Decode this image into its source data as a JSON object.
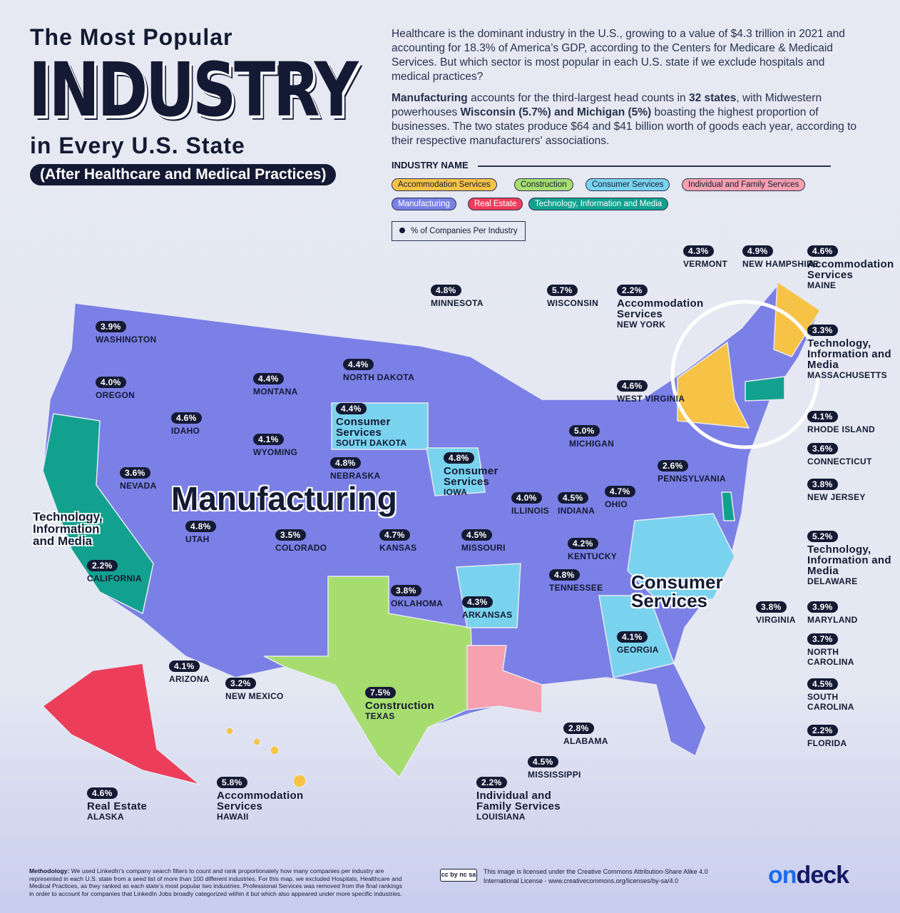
{
  "header": {
    "line1": "The Most Popular",
    "line2": "INDUSTRY",
    "line3": "in Every U.S. State",
    "subtitle": "(After Healthcare and Medical Practices)"
  },
  "intro": {
    "p1": "Healthcare is the dominant industry in the U.S., growing to a value of $4.3 trillion in 2021 and accounting for 18.3% of America’s GDP, according to the Centers for Medicare & Medicaid Services. But which sector is most popular in each U.S. state if we exclude hospitals and medical practices?",
    "p2_parts": [
      "Manufacturing",
      " accounts for the third-largest head counts in ",
      "32 states",
      ", with Midwestern powerhouses ",
      "Wisconsin (5.7%) and Michigan (5%)",
      " boasting the highest proportion of businesses. The two states produce $64 and $41 billion worth of goods each year, according to their respective manufacturers' associations."
    ]
  },
  "legend": {
    "title": "INDUSTRY NAME",
    "items": [
      {
        "label": "Accommodation Services",
        "color": "#f6c347",
        "text": "#141a33"
      },
      {
        "label": "Construction",
        "color": "#a6dd6e",
        "text": "#141a33"
      },
      {
        "label": "Consumer Services",
        "color": "#7ad3ee",
        "text": "#141a33"
      },
      {
        "label": "Individual and Family Services",
        "color": "#f6a0b0",
        "text": "#141a33"
      },
      {
        "label": "Manufacturing",
        "color": "#7b80e6",
        "text": "#ffffff"
      },
      {
        "label": "Real Estate",
        "color": "#ec3e5b",
        "text": "#ffffff"
      },
      {
        "label": "Technology, Information and Media",
        "color": "#12a18e",
        "text": "#ffffff"
      }
    ],
    "pct_key": "% of Companies Per Industry"
  },
  "region_labels": {
    "manufacturing": "Manufacturing",
    "consumer": "Consumer Services",
    "tech": "Technology, Information and Media"
  },
  "states": [
    {
      "pct": "3.9%",
      "name": "WASHINGTON"
    },
    {
      "pct": "4.0%",
      "name": "OREGON"
    },
    {
      "pct": "4.6%",
      "name": "IDAHO"
    },
    {
      "pct": "4.4%",
      "name": "MONTANA"
    },
    {
      "pct": "4.4%",
      "name": "NORTH DAKOTA"
    },
    {
      "pct": "4.8%",
      "name": "MINNESOTA"
    },
    {
      "pct": "5.7%",
      "name": "WISCONSIN"
    },
    {
      "pct": "2.2%",
      "name": "NEW YORK",
      "industry": "Accommodation Services"
    },
    {
      "pct": "4.3%",
      "name": "VERMONT"
    },
    {
      "pct": "4.9%",
      "name": "NEW HAMPSHIRE"
    },
    {
      "pct": "4.6%",
      "name": "MAINE",
      "industry": "Accommodation Services"
    },
    {
      "pct": "3.3%",
      "name": "MASSACHUSETTS",
      "industry": "Technology, Information and Media"
    },
    {
      "pct": "4.1%",
      "name": "RHODE ISLAND"
    },
    {
      "pct": "3.6%",
      "name": "CONNECTICUT"
    },
    {
      "pct": "3.8%",
      "name": "NEW JERSEY"
    },
    {
      "pct": "5.2%",
      "name": "DELAWARE",
      "industry": "Technology, Information and Media"
    },
    {
      "pct": "3.9%",
      "name": "MARYLAND"
    },
    {
      "pct": "3.8%",
      "name": "VIRGINIA"
    },
    {
      "pct": "3.7%",
      "name": "NORTH CAROLINA"
    },
    {
      "pct": "4.5%",
      "name": "SOUTH CAROLINA"
    },
    {
      "pct": "2.2%",
      "name": "FLORIDA"
    },
    {
      "pct": "4.4%",
      "name": "SOUTH DAKOTA",
      "industry": "Consumer Services"
    },
    {
      "pct": "4.1%",
      "name": "WYOMING"
    },
    {
      "pct": "3.6%",
      "name": "NEVADA"
    },
    {
      "pct": "4.8%",
      "name": "NEBRASKA"
    },
    {
      "pct": "4.8%",
      "name": "IOWA",
      "industry": "Consumer Services"
    },
    {
      "pct": "5.0%",
      "name": "MICHIGAN"
    },
    {
      "pct": "4.6%",
      "name": "WEST VIRGINIA"
    },
    {
      "pct": "2.6%",
      "name": "PENNSYLVANIA"
    },
    {
      "pct": "4.0%",
      "name": "ILLINOIS"
    },
    {
      "pct": "4.5%",
      "name": "INDIANA"
    },
    {
      "pct": "4.7%",
      "name": "OHIO"
    },
    {
      "pct": "4.8%",
      "name": "UTAH"
    },
    {
      "pct": "3.5%",
      "name": "COLORADO"
    },
    {
      "pct": "4.7%",
      "name": "KANSAS"
    },
    {
      "pct": "4.5%",
      "name": "MISSOURI"
    },
    {
      "pct": "4.2%",
      "name": "KENTUCKY"
    },
    {
      "pct": "2.2%",
      "name": "CALIFORNIA"
    },
    {
      "pct": "4.8%",
      "name": "TENNESSEE"
    },
    {
      "pct": "3.8%",
      "name": "OKLAHOMA"
    },
    {
      "pct": "4.3%",
      "name": "ARKANSAS"
    },
    {
      "pct": "4.1%",
      "name": "GEORGIA"
    },
    {
      "pct": "4.1%",
      "name": "ARIZONA"
    },
    {
      "pct": "3.2%",
      "name": "NEW MEXICO"
    },
    {
      "pct": "7.5%",
      "name": "TEXAS",
      "industry": "Construction"
    },
    {
      "pct": "2.8%",
      "name": "ALABAMA"
    },
    {
      "pct": "4.5%",
      "name": "MISSISSIPPI"
    },
    {
      "pct": "2.2%",
      "name": "LOUISIANA",
      "industry": "Individual and Family Services"
    },
    {
      "pct": "5.8%",
      "name": "HAWAII",
      "industry": "Accommodation Services"
    },
    {
      "pct": "4.6%",
      "name": "ALASKA",
      "industry": "Real Estate"
    }
  ],
  "footer": {
    "methodology_label": "Methodology:",
    "methodology": " We used LinkedIn’s company search filters to count and rank proportionately how many companies per industry are represented in each U.S. state from a seed list of more than 100 different industries. For this map, we excluded Hospitals, Healthcare and Medical Practices, as they ranked as each state’s most popular two industries. Professional Services was removed from the final rankings in order to account for companies that LinkedIn Jobs broadly categorized within it but which also appeared under more specific industries.",
    "cc_badge": "cc by nc sa",
    "license": "This image is licensed under the Creative Commons Attribution-Share Alike 4.0 International License - www.creativecommons.org/licenses/by-sa/4.0",
    "logo_on": "on",
    "logo_deck": "deck",
    "logo_colors": {
      "on": "#1a6cf0",
      "deck": "#141a66"
    }
  }
}
